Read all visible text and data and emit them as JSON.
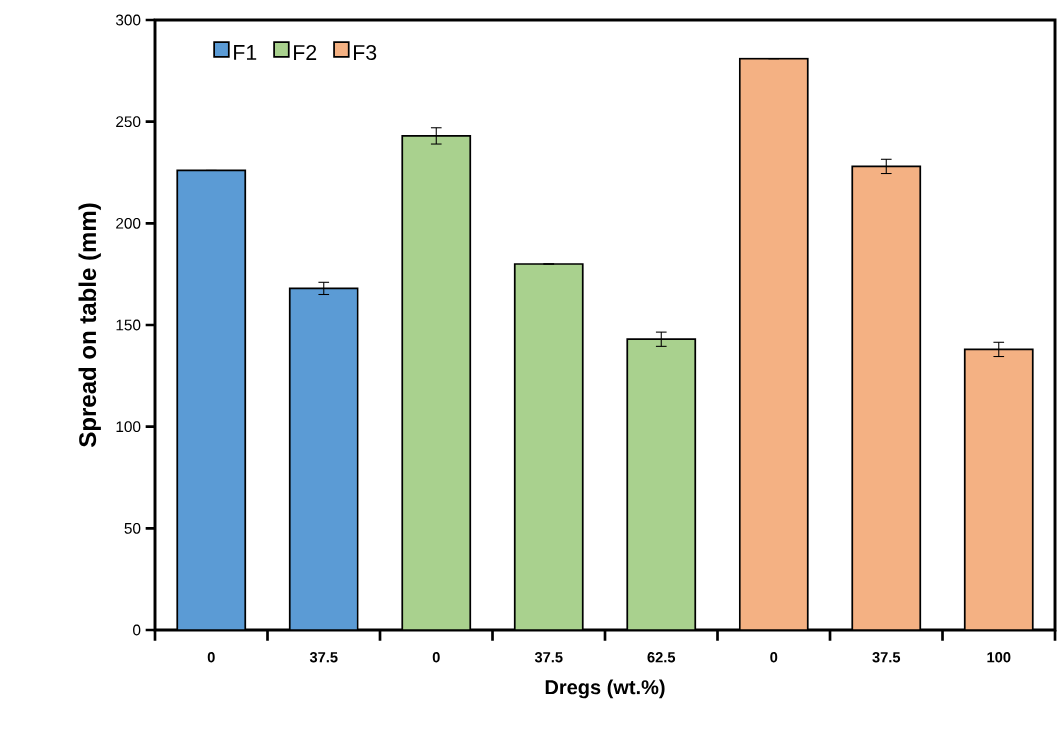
{
  "chart_data": {
    "type": "bar",
    "xlabel": "Dregs (wt.%)",
    "ylabel": "Spread on table (mm)",
    "categories": [
      "0",
      "37.5",
      "0",
      "37.5",
      "62.5",
      "0",
      "37.5",
      "100"
    ],
    "series": [
      {
        "name": "F1",
        "color": "#5b9bd5",
        "values": [
          226,
          168,
          null,
          null,
          null,
          null,
          null,
          null
        ],
        "errors": [
          null,
          3,
          null,
          null,
          null,
          null,
          null,
          null
        ]
      },
      {
        "name": "F2",
        "color": "#a9d18e",
        "values": [
          null,
          null,
          243,
          180,
          143,
          null,
          null,
          null
        ],
        "errors": [
          null,
          null,
          4,
          null,
          3.5,
          null,
          null,
          null
        ]
      },
      {
        "name": "F3",
        "color": "#f4b183",
        "values": [
          null,
          null,
          null,
          null,
          null,
          281,
          228,
          138
        ],
        "errors": [
          null,
          null,
          null,
          null,
          null,
          null,
          3.5,
          3.5
        ]
      }
    ],
    "ylim": [
      0,
      300
    ],
    "yticks": [
      0,
      50,
      100,
      150,
      200,
      250,
      300
    ],
    "grid": false,
    "legend": "top left"
  }
}
